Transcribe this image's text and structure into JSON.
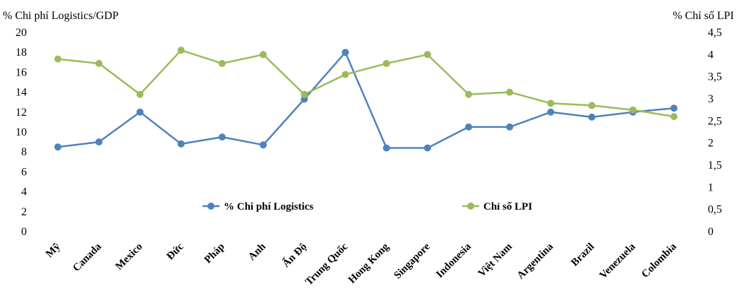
{
  "chart_data": {
    "type": "line",
    "categories": [
      "Mỹ",
      "Canada",
      "Mexico",
      "Đức",
      "Pháp",
      "Anh",
      "Ấn Độ",
      "Trung Quốc",
      "Hong Kong",
      "Singapore",
      "Indonesia",
      "Việt Nam",
      "Argentina",
      "Brazil",
      "Venezuela",
      "Colombia"
    ],
    "ylabel_left": "% Chi phí Logistics/GDP",
    "ylabel_right": "% Chỉ số LPI",
    "ylim_left": [
      0,
      20
    ],
    "ylim_right": [
      0,
      4.5
    ],
    "yticks_left": [
      "0",
      "2",
      "4",
      "6",
      "8",
      "10",
      "12",
      "14",
      "16",
      "18",
      "20"
    ],
    "yticks_right": [
      "0",
      "0,5",
      "1",
      "1,5",
      "2",
      "2,5",
      "3",
      "3,5",
      "4",
      "4,5"
    ],
    "grid": false,
    "legend_position": "bottom-center",
    "series": [
      {
        "name": "% Chi phí Logistics",
        "axis": "left",
        "color": "#4F81BD",
        "values": [
          8.5,
          9.0,
          12.0,
          8.8,
          9.5,
          8.7,
          13.3,
          18.0,
          8.4,
          8.4,
          10.5,
          10.5,
          12.0,
          11.5,
          12.0,
          12.4
        ]
      },
      {
        "name": "Chỉ số LPI",
        "axis": "right",
        "color": "#9BBB59",
        "values": [
          3.9,
          3.8,
          3.1,
          4.1,
          3.8,
          4.0,
          3.1,
          3.55,
          3.8,
          4.0,
          3.1,
          3.15,
          2.9,
          2.85,
          2.75,
          2.6
        ]
      }
    ]
  }
}
